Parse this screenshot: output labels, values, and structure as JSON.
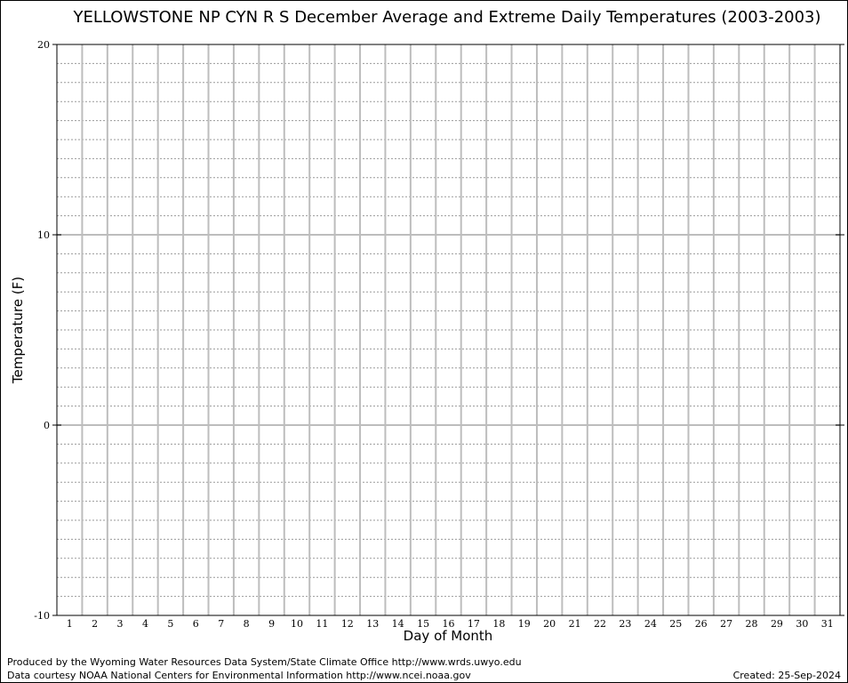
{
  "chart_data": {
    "type": "line",
    "title": "YELLOWSTONE NP CYN R S December Average and Extreme Daily Temperatures (2003-2003)",
    "xlabel": "Day of Month",
    "ylabel": "Temperature (F)",
    "x": [
      1,
      2,
      3,
      4,
      5,
      6,
      7,
      8,
      9,
      10,
      11,
      12,
      13,
      14,
      15,
      16,
      17,
      18,
      19,
      20,
      21,
      22,
      23,
      24,
      25,
      26,
      27,
      28,
      29,
      30,
      31
    ],
    "xlim": [
      0.5,
      31.5
    ],
    "ylim": [
      -10,
      20
    ],
    "y_ticks": [
      "-10",
      "0",
      "10",
      "20"
    ],
    "y_minor_step": 1,
    "grid": true,
    "series": []
  },
  "footer": {
    "produced_by": "Produced by the Wyoming Water Resources Data System/State Climate Office http://www.wrds.uwyo.edu",
    "data_courtesy": "Data courtesy NOAA National Centers for Environmental Information http://www.ncei.noaa.gov",
    "created": "Created:  25-Sep-2024"
  }
}
